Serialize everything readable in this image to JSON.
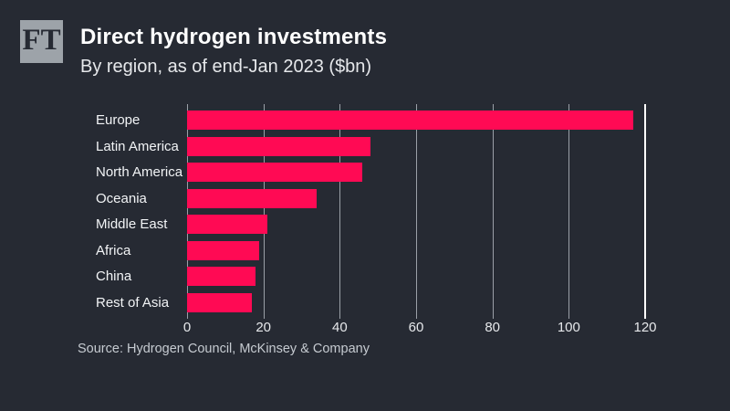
{
  "logo": {
    "text": "FT"
  },
  "header": {
    "title": "Direct hydrogen investments",
    "subtitle": "By region, as of end-Jan 2023 ($bn)"
  },
  "source": "Source: Hydrogen Council, McKinsey & Company",
  "colors": {
    "background": "#262a33",
    "bar": "#ff0a54",
    "gridline": "#9ba0a8",
    "gridline_last": "#ffffff",
    "title": "#ffffff",
    "subtitle": "#e6e8eb",
    "category_label": "#f2f4f6",
    "tick_label": "#e6e8eb",
    "source_text": "#c6cbd1",
    "logo_bg": "#9da3a9",
    "logo_fg": "#262a33"
  },
  "chart_data": {
    "type": "bar",
    "orientation": "horizontal",
    "title": "Direct hydrogen investments",
    "subtitle": "By region, as of end-Jan 2023 ($bn)",
    "categories": [
      "Europe",
      "Latin America",
      "North America",
      "Oceania",
      "Middle East",
      "Africa",
      "China",
      "Rest of Asia"
    ],
    "values": [
      117,
      48,
      46,
      34,
      21,
      19,
      18,
      17
    ],
    "xlabel": "",
    "ylabel": "",
    "xlim": [
      0,
      120
    ],
    "xticks": [
      0,
      20,
      40,
      60,
      80,
      100,
      120
    ],
    "grid": true,
    "legend": false
  }
}
